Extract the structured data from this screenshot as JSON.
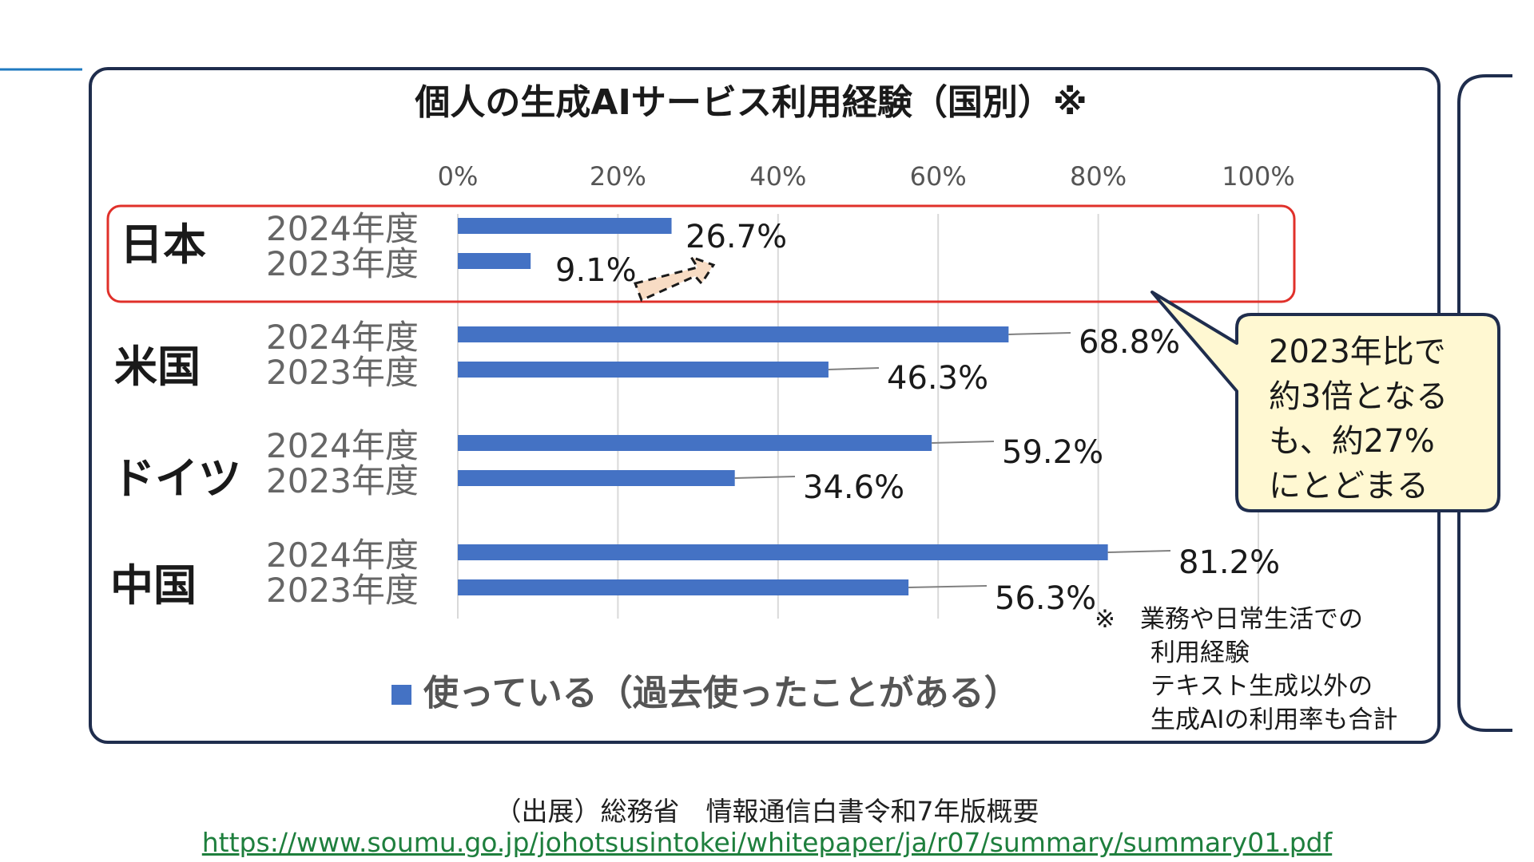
{
  "chart_data": {
    "type": "bar",
    "orientation": "horizontal",
    "title": "個人の生成AIサービス利用経験（国別）※",
    "x_ticks": [
      "0%",
      "20%",
      "40%",
      "60%",
      "80%",
      "100%"
    ],
    "xlim": [
      0,
      100
    ],
    "grid": true,
    "groups": [
      {
        "country": "日本",
        "bars": [
          {
            "year": "2024年度",
            "value": 26.7,
            "label": "26.7%"
          },
          {
            "year": "2023年度",
            "value": 9.1,
            "label": "9.1%"
          }
        ]
      },
      {
        "country": "米国",
        "bars": [
          {
            "year": "2024年度",
            "value": 68.8,
            "label": "68.8%"
          },
          {
            "year": "2023年度",
            "value": 46.3,
            "label": "46.3%"
          }
        ]
      },
      {
        "country": "ドイツ",
        "bars": [
          {
            "year": "2024年度",
            "value": 59.2,
            "label": "59.2%"
          },
          {
            "year": "2023年度",
            "value": 34.6,
            "label": "34.6%"
          }
        ]
      },
      {
        "country": "中国",
        "bars": [
          {
            "year": "2024年度",
            "value": 81.2,
            "label": "81.2%"
          },
          {
            "year": "2023年度",
            "value": 56.3,
            "label": "56.3%"
          }
        ]
      }
    ],
    "legend": {
      "position": "bottom",
      "label": "使っている（過去使ったことがある）"
    },
    "callout": [
      "2023年比で",
      "約3倍となる",
      "も、約27%",
      "にとどまる"
    ],
    "note": [
      "※　業務や日常生活での",
      "利用経験",
      "テキスト生成以外の",
      "生成AIの利用率も合計"
    ]
  },
  "colors": {
    "bar": "#4472c4",
    "frame": "#1f2d4d",
    "highlight": "#e0302a",
    "callout_fill": "#fff8d2",
    "arrow_fill": "#f8dcc4",
    "link": "#1e7f3d",
    "accent_line": "#1f7ac0"
  },
  "source": {
    "label": "（出展）総務省　情報通信白書令和7年版概要",
    "url": "https://www.soumu.go.jp/johotsusintokei/whitepaper/ja/r07/summary/summary01.pdf"
  }
}
